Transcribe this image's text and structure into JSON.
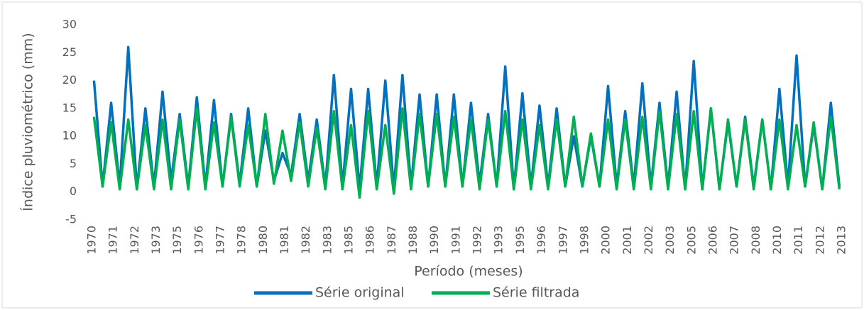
{
  "chart_data": {
    "type": "line",
    "ylabel": "Índice pluviométrico (mm)",
    "xlabel": "Período (meses)",
    "xlim": [
      1970,
      2014
    ],
    "ylim": [
      -5,
      30
    ],
    "yticks": [
      -5,
      0,
      5,
      10,
      15,
      20,
      25,
      30
    ],
    "xticks": [
      {
        "value": 1970,
        "label": "1970"
      },
      {
        "value": 1971.25,
        "label": "1971"
      },
      {
        "value": 1972.5,
        "label": "1972"
      },
      {
        "value": 1973.75,
        "label": "1973"
      },
      {
        "value": 1975,
        "label": "1975"
      },
      {
        "value": 1976.25,
        "label": "1976"
      },
      {
        "value": 1977.5,
        "label": "1977"
      },
      {
        "value": 1978.75,
        "label": "1978"
      },
      {
        "value": 1980,
        "label": "1980"
      },
      {
        "value": 1981.25,
        "label": "1981"
      },
      {
        "value": 1982.5,
        "label": "1982"
      },
      {
        "value": 1983.75,
        "label": "1983"
      },
      {
        "value": 1985,
        "label": "1985"
      },
      {
        "value": 1986.25,
        "label": "1986"
      },
      {
        "value": 1987.5,
        "label": "1987"
      },
      {
        "value": 1988.75,
        "label": "1988"
      },
      {
        "value": 1990,
        "label": "1990"
      },
      {
        "value": 1991.25,
        "label": "1991"
      },
      {
        "value": 1992.5,
        "label": "1992"
      },
      {
        "value": 1993.75,
        "label": "1993"
      },
      {
        "value": 1995,
        "label": "1995"
      },
      {
        "value": 1996.25,
        "label": "1996"
      },
      {
        "value": 1997.5,
        "label": "1997"
      },
      {
        "value": 1998.75,
        "label": "1998"
      },
      {
        "value": 2000,
        "label": "2000"
      },
      {
        "value": 2001.25,
        "label": "2001"
      },
      {
        "value": 2002.5,
        "label": "2002"
      },
      {
        "value": 2003.75,
        "label": "2003"
      },
      {
        "value": 2005,
        "label": "2005"
      },
      {
        "value": 2006.25,
        "label": "2006"
      },
      {
        "value": 2007.5,
        "label": "2007"
      },
      {
        "value": 2008.75,
        "label": "2008"
      },
      {
        "value": 2010,
        "label": "2010"
      },
      {
        "value": 2011.25,
        "label": "2011"
      },
      {
        "value": 2012.5,
        "label": "2012"
      },
      {
        "value": 2013.75,
        "label": "2013"
      }
    ],
    "x": [
      1970.1,
      1970.6,
      1971.1,
      1971.6,
      1972.1,
      1972.6,
      1973.1,
      1973.6,
      1974.1,
      1974.6,
      1975.1,
      1975.6,
      1976.1,
      1976.6,
      1977.1,
      1977.6,
      1978.1,
      1978.6,
      1979.1,
      1979.6,
      1980.1,
      1980.6,
      1981.1,
      1981.6,
      1982.1,
      1982.6,
      1983.1,
      1983.6,
      1984.1,
      1984.6,
      1985.1,
      1985.6,
      1986.1,
      1986.6,
      1987.1,
      1987.6,
      1988.1,
      1988.6,
      1989.1,
      1989.6,
      1990.1,
      1990.6,
      1991.1,
      1991.6,
      1992.1,
      1992.6,
      1993.1,
      1993.6,
      1994.1,
      1994.6,
      1995.1,
      1995.6,
      1996.1,
      1996.6,
      1997.1,
      1997.6,
      1998.1,
      1998.6,
      1999.1,
      1999.6,
      2000.1,
      2000.6,
      2001.1,
      2001.6,
      2002.1,
      2002.6,
      2003.1,
      2003.6,
      2004.1,
      2004.6,
      2005.1,
      2005.6,
      2006.1,
      2006.6,
      2007.1,
      2007.6,
      2008.1,
      2008.6,
      2009.1,
      2009.6,
      2010.1,
      2010.6,
      2011.1,
      2011.6,
      2012.1,
      2012.6,
      2013.1,
      2013.6
    ],
    "series": [
      {
        "name": "Série original",
        "color": "#0070c0",
        "values": [
          20,
          1,
          16,
          1,
          26,
          0.5,
          15,
          1,
          18,
          2,
          14,
          1,
          17,
          1,
          16.5,
          1,
          14,
          1.5,
          15,
          1,
          11,
          2,
          7,
          3,
          14,
          2,
          13,
          1,
          21,
          1,
          18.5,
          0.5,
          18.5,
          1,
          20,
          0.5,
          21,
          1,
          17.5,
          1,
          17.5,
          1,
          17.5,
          1,
          16,
          1.5,
          14,
          1,
          22.5,
          0.5,
          17.7,
          1,
          15.5,
          1,
          15,
          1,
          10,
          1,
          10,
          1,
          19,
          1,
          14.5,
          1,
          19.5,
          1,
          16,
          1,
          18,
          0.5,
          23.5,
          0.5,
          15,
          0.5,
          12.5,
          1,
          13.5,
          1,
          13,
          0.5,
          18.5,
          1,
          24.5,
          1,
          12,
          0.5,
          16,
          1
        ]
      },
      {
        "name": "Série filtrada",
        "color": "#00b050",
        "values": [
          13.5,
          1,
          12.5,
          0.5,
          13,
          0.5,
          12,
          0.5,
          13,
          0.5,
          13,
          0.5,
          15,
          0.5,
          12.5,
          1,
          13.5,
          1,
          12,
          1,
          14,
          1.5,
          11,
          2,
          12.5,
          1,
          11.5,
          0.5,
          14.5,
          0.5,
          12,
          -1,
          14.5,
          0.5,
          12,
          -0.3,
          15,
          0.5,
          14,
          1,
          14,
          1,
          13.5,
          1,
          13,
          0.5,
          13,
          1,
          14.5,
          0.5,
          13,
          0.5,
          12,
          0.5,
          13,
          1,
          13.5,
          1,
          10.5,
          1,
          13,
          0.5,
          13,
          0.5,
          13.5,
          0.5,
          14.5,
          0.5,
          14,
          0.5,
          14.5,
          0.5,
          15,
          0.5,
          13,
          1,
          13,
          0.5,
          13,
          0.5,
          13,
          0.5,
          12,
          1,
          12.5,
          0.5,
          13.5,
          0.5
        ]
      }
    ]
  }
}
